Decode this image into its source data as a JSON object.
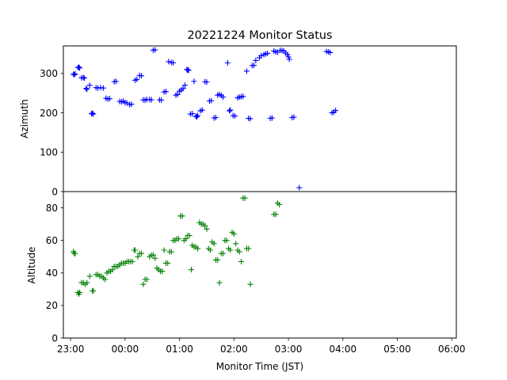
{
  "chart_data": {
    "type": "scatter",
    "title": "20221224 Monitor Status",
    "xlabel": "Monitor Time (JST)",
    "x_ticks": [
      "23:00",
      "00:00",
      "01:00",
      "02:00",
      "03:00",
      "04:00",
      "05:00",
      "06:00"
    ],
    "x_range": [
      "22:52",
      "06:05"
    ],
    "marker": "+",
    "panels": [
      {
        "ylabel": "Azimuth",
        "ylim": [
          0,
          370
        ],
        "y_ticks": [
          0,
          100,
          200,
          300
        ],
        "color": "#0000ff",
        "points": [
          [
            "23:03",
            298
          ],
          [
            "23:04",
            297
          ],
          [
            "23:05",
            299
          ],
          [
            "23:08",
            315
          ],
          [
            "23:09",
            316
          ],
          [
            "23:10",
            314
          ],
          [
            "23:12",
            289
          ],
          [
            "23:14",
            290
          ],
          [
            "23:15",
            288
          ],
          [
            "23:17",
            262
          ],
          [
            "23:18",
            260
          ],
          [
            "23:21",
            270
          ],
          [
            "23:23",
            198
          ],
          [
            "23:24",
            199
          ],
          [
            "23:25",
            197
          ],
          [
            "23:28",
            264
          ],
          [
            "23:30",
            263
          ],
          [
            "23:33",
            264
          ],
          [
            "23:36",
            263
          ],
          [
            "23:39",
            237
          ],
          [
            "23:41",
            235
          ],
          [
            "23:43",
            236
          ],
          [
            "23:48",
            279
          ],
          [
            "23:50",
            280
          ],
          [
            "23:54",
            229
          ],
          [
            "23:56",
            228
          ],
          [
            "23:58",
            230
          ],
          [
            "00:00",
            226
          ],
          [
            "00:02",
            225
          ],
          [
            "00:05",
            221
          ],
          [
            "00:07",
            222
          ],
          [
            "00:11",
            283
          ],
          [
            "00:13",
            285
          ],
          [
            "00:16",
            295
          ],
          [
            "00:18",
            294
          ],
          [
            "00:20",
            233
          ],
          [
            "00:22",
            232
          ],
          [
            "00:24",
            234
          ],
          [
            "00:27",
            234
          ],
          [
            "00:29",
            233
          ],
          [
            "00:31",
            359
          ],
          [
            "00:33",
            360
          ],
          [
            "00:38",
            233
          ],
          [
            "00:40",
            232
          ],
          [
            "00:43",
            253
          ],
          [
            "00:45",
            254
          ],
          [
            "00:48",
            330
          ],
          [
            "00:51",
            328
          ],
          [
            "00:53",
            327
          ],
          [
            "00:56",
            245
          ],
          [
            "00:58",
            247
          ],
          [
            "01:00",
            255
          ],
          [
            "01:02",
            258
          ],
          [
            "01:04",
            262
          ],
          [
            "01:06",
            270
          ],
          [
            "01:08",
            310
          ],
          [
            "01:09",
            309
          ],
          [
            "01:10",
            308
          ],
          [
            "01:12",
            197
          ],
          [
            "01:14",
            198
          ],
          [
            "01:16",
            280
          ],
          [
            "01:18",
            191
          ],
          [
            "01:19",
            190
          ],
          [
            "01:20",
            193
          ],
          [
            "01:23",
            205
          ],
          [
            "01:25",
            207
          ],
          [
            "01:28",
            279
          ],
          [
            "01:30",
            278
          ],
          [
            "01:33",
            230
          ],
          [
            "01:35",
            231
          ],
          [
            "01:38",
            187
          ],
          [
            "01:40",
            188
          ],
          [
            "01:42",
            245
          ],
          [
            "01:44",
            247
          ],
          [
            "01:46",
            244
          ],
          [
            "01:48",
            240
          ],
          [
            "01:53",
            327
          ],
          [
            "01:55",
            205
          ],
          [
            "01:56",
            207
          ],
          [
            "01:59",
            193
          ],
          [
            "02:01",
            192
          ],
          [
            "02:04",
            238
          ],
          [
            "02:06",
            240
          ],
          [
            "02:08",
            241
          ],
          [
            "02:10",
            242
          ],
          [
            "02:14",
            306
          ],
          [
            "02:16",
            186
          ],
          [
            "02:18",
            185
          ],
          [
            "02:20",
            320
          ],
          [
            "02:22",
            321
          ],
          [
            "02:24",
            333
          ],
          [
            "02:28",
            340
          ],
          [
            "02:30",
            345
          ],
          [
            "02:33",
            348
          ],
          [
            "02:35",
            350
          ],
          [
            "02:37",
            351
          ],
          [
            "02:40",
            186
          ],
          [
            "02:42",
            187
          ],
          [
            "02:44",
            357
          ],
          [
            "02:46",
            355
          ],
          [
            "02:48",
            354
          ],
          [
            "02:51",
            359
          ],
          [
            "02:53",
            358
          ],
          [
            "02:55",
            357
          ],
          [
            "02:57",
            352
          ],
          [
            "02:59",
            348
          ],
          [
            "03:00",
            342
          ],
          [
            "03:01",
            336
          ],
          [
            "03:04",
            188
          ],
          [
            "03:06",
            189
          ],
          [
            "03:12",
            10
          ],
          [
            "03:42",
            356
          ],
          [
            "03:44",
            355
          ],
          [
            "03:46",
            353
          ],
          [
            "03:48",
            200
          ],
          [
            "03:50",
            202
          ],
          [
            "03:52",
            206
          ]
        ]
      },
      {
        "ylabel": "Altitude",
        "ylim": [
          0,
          90
        ],
        "y_ticks": [
          0,
          20,
          40,
          60,
          80
        ],
        "color": "#008000",
        "points": [
          [
            "23:03",
            53
          ],
          [
            "23:04",
            52
          ],
          [
            "23:05",
            52
          ],
          [
            "23:08",
            28
          ],
          [
            "23:09",
            27
          ],
          [
            "23:10",
            28
          ],
          [
            "23:12",
            34
          ],
          [
            "23:14",
            34
          ],
          [
            "23:16",
            33
          ],
          [
            "23:18",
            34
          ],
          [
            "23:21",
            38
          ],
          [
            "23:24",
            29
          ],
          [
            "23:25",
            29
          ],
          [
            "23:28",
            39
          ],
          [
            "23:30",
            39
          ],
          [
            "23:32",
            38
          ],
          [
            "23:34",
            38
          ],
          [
            "23:36",
            37
          ],
          [
            "23:38",
            36
          ],
          [
            "23:40",
            40
          ],
          [
            "23:42",
            41
          ],
          [
            "23:44",
            41
          ],
          [
            "23:46",
            42
          ],
          [
            "23:48",
            44
          ],
          [
            "23:50",
            44
          ],
          [
            "23:52",
            44
          ],
          [
            "23:54",
            45
          ],
          [
            "23:56",
            46
          ],
          [
            "23:58",
            46
          ],
          [
            "00:00",
            46
          ],
          [
            "00:02",
            47
          ],
          [
            "00:04",
            47
          ],
          [
            "00:06",
            47
          ],
          [
            "00:08",
            47
          ],
          [
            "00:10",
            54
          ],
          [
            "00:11",
            54
          ],
          [
            "00:14",
            50
          ],
          [
            "00:16",
            52
          ],
          [
            "00:18",
            52
          ],
          [
            "00:20",
            33
          ],
          [
            "00:22",
            36
          ],
          [
            "00:24",
            36
          ],
          [
            "00:27",
            50
          ],
          [
            "00:29",
            51
          ],
          [
            "00:31",
            51
          ],
          [
            "00:33",
            49
          ],
          [
            "00:35",
            43
          ],
          [
            "00:37",
            42
          ],
          [
            "00:39",
            41
          ],
          [
            "00:41",
            41
          ],
          [
            "00:43",
            54
          ],
          [
            "00:45",
            46
          ],
          [
            "00:47",
            46
          ],
          [
            "00:49",
            53
          ],
          [
            "00:51",
            53
          ],
          [
            "00:53",
            60
          ],
          [
            "00:55",
            60
          ],
          [
            "00:57",
            61
          ],
          [
            "00:59",
            61
          ],
          [
            "01:01",
            75
          ],
          [
            "01:03",
            75
          ],
          [
            "01:05",
            60
          ],
          [
            "01:07",
            61
          ],
          [
            "01:09",
            63
          ],
          [
            "01:11",
            63
          ],
          [
            "01:13",
            42
          ],
          [
            "01:14",
            57
          ],
          [
            "01:16",
            56
          ],
          [
            "01:18",
            56
          ],
          [
            "01:20",
            55
          ],
          [
            "01:22",
            71
          ],
          [
            "01:24",
            70
          ],
          [
            "01:26",
            70
          ],
          [
            "01:28",
            69
          ],
          [
            "01:30",
            67
          ],
          [
            "01:32",
            55
          ],
          [
            "01:34",
            54
          ],
          [
            "01:36",
            59
          ],
          [
            "01:38",
            58
          ],
          [
            "01:40",
            48
          ],
          [
            "01:42",
            48
          ],
          [
            "01:44",
            34
          ],
          [
            "01:46",
            52
          ],
          [
            "01:48",
            52
          ],
          [
            "01:50",
            60
          ],
          [
            "01:52",
            60
          ],
          [
            "01:54",
            55
          ],
          [
            "01:56",
            54
          ],
          [
            "01:58",
            65
          ],
          [
            "02:00",
            64
          ],
          [
            "02:02",
            58
          ],
          [
            "02:04",
            54
          ],
          [
            "02:06",
            53
          ],
          [
            "02:08",
            47
          ],
          [
            "02:10",
            86
          ],
          [
            "02:12",
            86
          ],
          [
            "02:14",
            55
          ],
          [
            "02:16",
            55
          ],
          [
            "02:18",
            33
          ],
          [
            "02:44",
            76
          ],
          [
            "02:46",
            76
          ],
          [
            "02:48",
            83
          ],
          [
            "02:50",
            82
          ]
        ]
      }
    ]
  }
}
